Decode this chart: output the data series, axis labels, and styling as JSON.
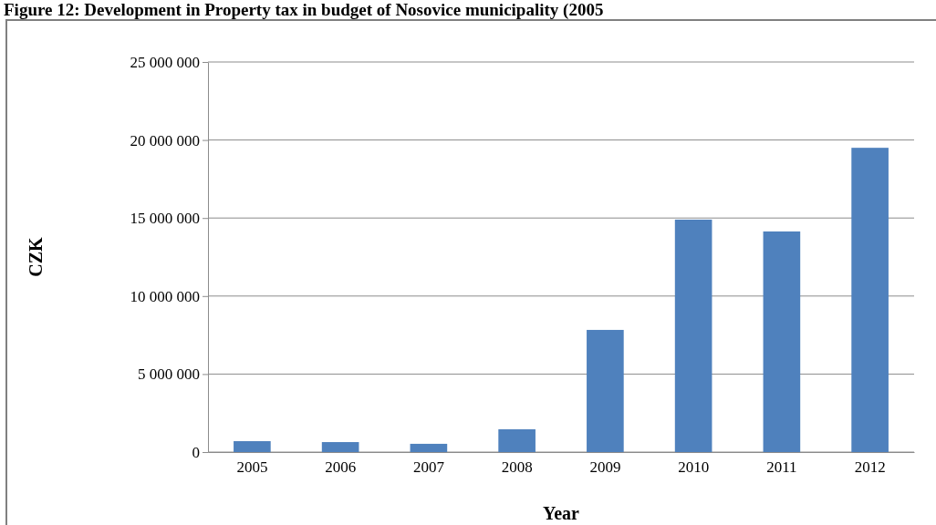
{
  "chart_data": {
    "type": "bar",
    "title": "Figure 12: Development in Property tax in budget of Nosovice municipality (2005",
    "xlabel": "Year",
    "ylabel": "CZK",
    "categories": [
      "2005",
      "2006",
      "2007",
      "2008",
      "2009",
      "2010",
      "2011",
      "2012"
    ],
    "values": [
      700000,
      640000,
      530000,
      1460000,
      7830000,
      14900000,
      14140000,
      19500000
    ],
    "color": "#4f81bd",
    "ylim": [
      0,
      25000000
    ],
    "yticks": [
      {
        "value": 0,
        "label": "0"
      },
      {
        "value": 5000000,
        "label": "5 000 000"
      },
      {
        "value": 10000000,
        "label": "10 000 000"
      },
      {
        "value": 15000000,
        "label": "15 000 000"
      },
      {
        "value": 20000000,
        "label": "20 000 000"
      },
      {
        "value": 25000000,
        "label": "25 000 000"
      }
    ],
    "grid": "y"
  }
}
